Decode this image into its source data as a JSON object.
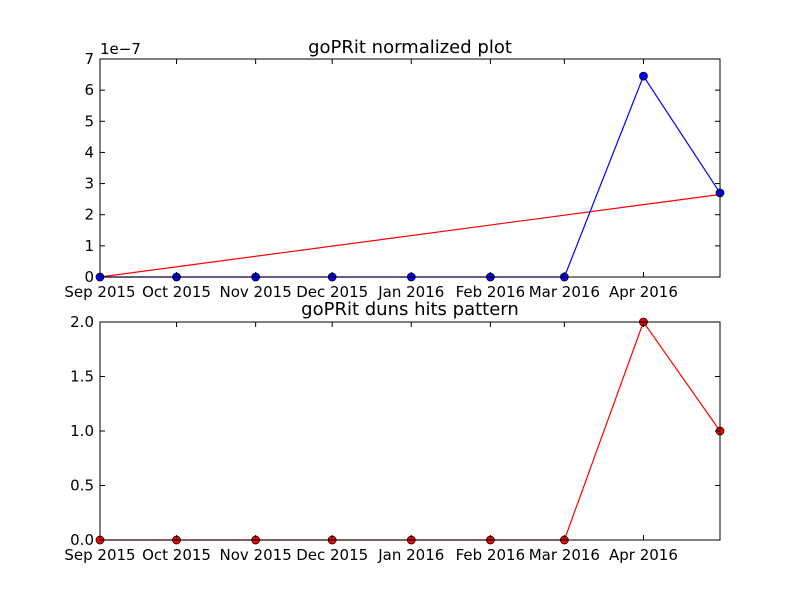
{
  "chart_data": [
    {
      "type": "line",
      "title": "goPRit normalized plot",
      "xlabel": "",
      "ylabel": "",
      "x_tick_labels": [
        "Sep 2015",
        "Oct 2015",
        "Nov 2015",
        "Dec 2015",
        "Jan 2016",
        "Feb 2016",
        "Mar 2016",
        "Apr 2016"
      ],
      "x_dates": [
        "2015-09-01",
        "2015-10-01",
        "2015-11-01",
        "2015-12-01",
        "2016-01-01",
        "2016-02-01",
        "2016-03-01",
        "2016-04-01",
        "2016-05-01"
      ],
      "ylim": [
        0,
        7e-07
      ],
      "y_ticks": [
        0,
        1e-07,
        2e-07,
        3e-07,
        4e-07,
        5e-07,
        6e-07,
        7e-07
      ],
      "y_tick_labels": [
        "0",
        "1",
        "2",
        "3",
        "4",
        "5",
        "6",
        "7"
      ],
      "y_offset_label": "1e−7",
      "grid": false,
      "series": [
        {
          "color": "#0000ff",
          "marker": "circle",
          "values": [
            0,
            0,
            0,
            0,
            0,
            0,
            0,
            6.45e-07,
            2.7e-07
          ]
        }
      ],
      "trend_line": {
        "color": "#ff0000",
        "start": [
          "2015-09-01",
          0
        ],
        "end": [
          "2016-05-01",
          2.65e-07
        ]
      }
    },
    {
      "type": "line",
      "title": "goPRit duns hits pattern",
      "xlabel": "",
      "ylabel": "",
      "x_tick_labels": [
        "Sep 2015",
        "Oct 2015",
        "Nov 2015",
        "Dec 2015",
        "Jan 2016",
        "Feb 2016",
        "Mar 2016",
        "Apr 2016"
      ],
      "x_dates": [
        "2015-09-01",
        "2015-10-01",
        "2015-11-01",
        "2015-12-01",
        "2016-01-01",
        "2016-02-01",
        "2016-03-01",
        "2016-04-01",
        "2016-05-01"
      ],
      "ylim": [
        0,
        2
      ],
      "y_ticks": [
        0,
        0.5,
        1,
        1.5,
        2
      ],
      "y_tick_labels": [
        "0.0",
        "0.5",
        "1.0",
        "1.5",
        "2.0"
      ],
      "grid": false,
      "series": [
        {
          "color": "#ff0000",
          "marker": "circle",
          "values": [
            0,
            0,
            0,
            0,
            0,
            0,
            0,
            2,
            1
          ]
        }
      ]
    }
  ]
}
